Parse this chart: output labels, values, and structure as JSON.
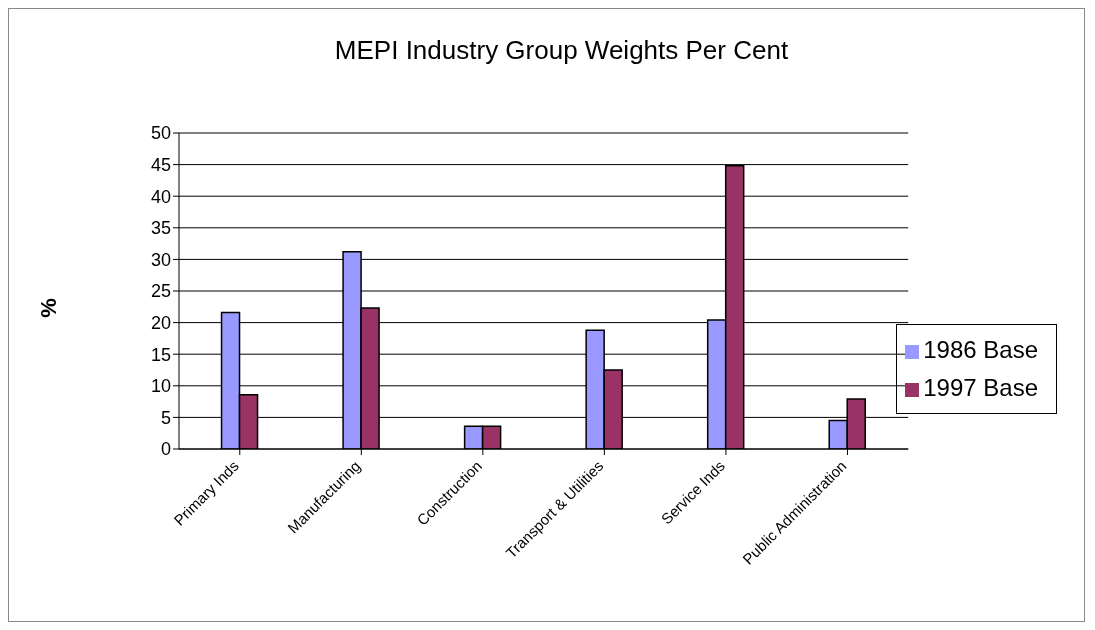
{
  "chart_data": {
    "type": "bar",
    "title": "MEPI Industry Group Weights Per Cent",
    "ylabel": "%",
    "categories": [
      "Primary Inds",
      "Manufacturing",
      "Construction",
      "Transport & Utilities",
      "Service Inds",
      "Public Administration"
    ],
    "series": [
      {
        "name": "1986 Base",
        "color": "#9999ff",
        "values": [
          21.6,
          31.2,
          3.6,
          18.8,
          20.4,
          4.5
        ]
      },
      {
        "name": "1997 Base",
        "color": "#993366",
        "values": [
          8.6,
          22.3,
          3.6,
          12.5,
          44.8,
          7.9
        ]
      }
    ],
    "ylim": [
      0,
      50
    ],
    "yticks": [
      0,
      5,
      10,
      15,
      20,
      25,
      30,
      35,
      40,
      45,
      50
    ],
    "grid": "y",
    "legend": "right"
  }
}
